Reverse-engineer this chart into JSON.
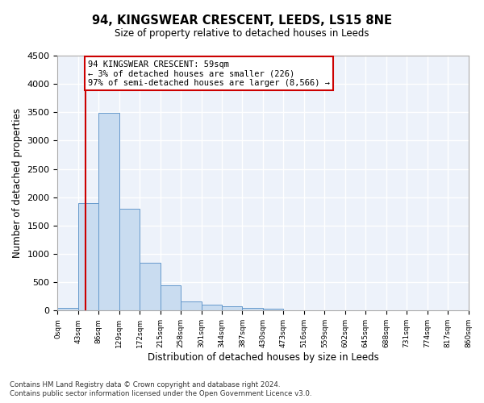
{
  "title": "94, KINGSWEAR CRESCENT, LEEDS, LS15 8NE",
  "subtitle": "Size of property relative to detached houses in Leeds",
  "xlabel": "Distribution of detached houses by size in Leeds",
  "ylabel": "Number of detached properties",
  "bar_color": "#c9dcf0",
  "bar_edge_color": "#6699cc",
  "annotation_line_color": "#cc0000",
  "annotation_text": "94 KINGSWEAR CRESCENT: 59sqm\n← 3% of detached houses are smaller (226)\n97% of semi-detached houses are larger (8,566) →",
  "property_size": 59,
  "ylim": [
    0,
    4500
  ],
  "yticks": [
    0,
    500,
    1000,
    1500,
    2000,
    2500,
    3000,
    3500,
    4000,
    4500
  ],
  "bin_edges": [
    0,
    43,
    86,
    129,
    172,
    215,
    258,
    301,
    344,
    387,
    430,
    473,
    516,
    559,
    602,
    645,
    688,
    731,
    774,
    817,
    860
  ],
  "bar_heights": [
    50,
    1900,
    3490,
    1800,
    850,
    450,
    160,
    100,
    75,
    52,
    28,
    10,
    5,
    4,
    3,
    2,
    1,
    1,
    1,
    1
  ],
  "footnote1": "Contains HM Land Registry data © Crown copyright and database right 2024.",
  "footnote2": "Contains public sector information licensed under the Open Government Licence v3.0.",
  "background_color": "#edf2fa",
  "plot_background": "#ffffff",
  "grid_color": "#ffffff"
}
